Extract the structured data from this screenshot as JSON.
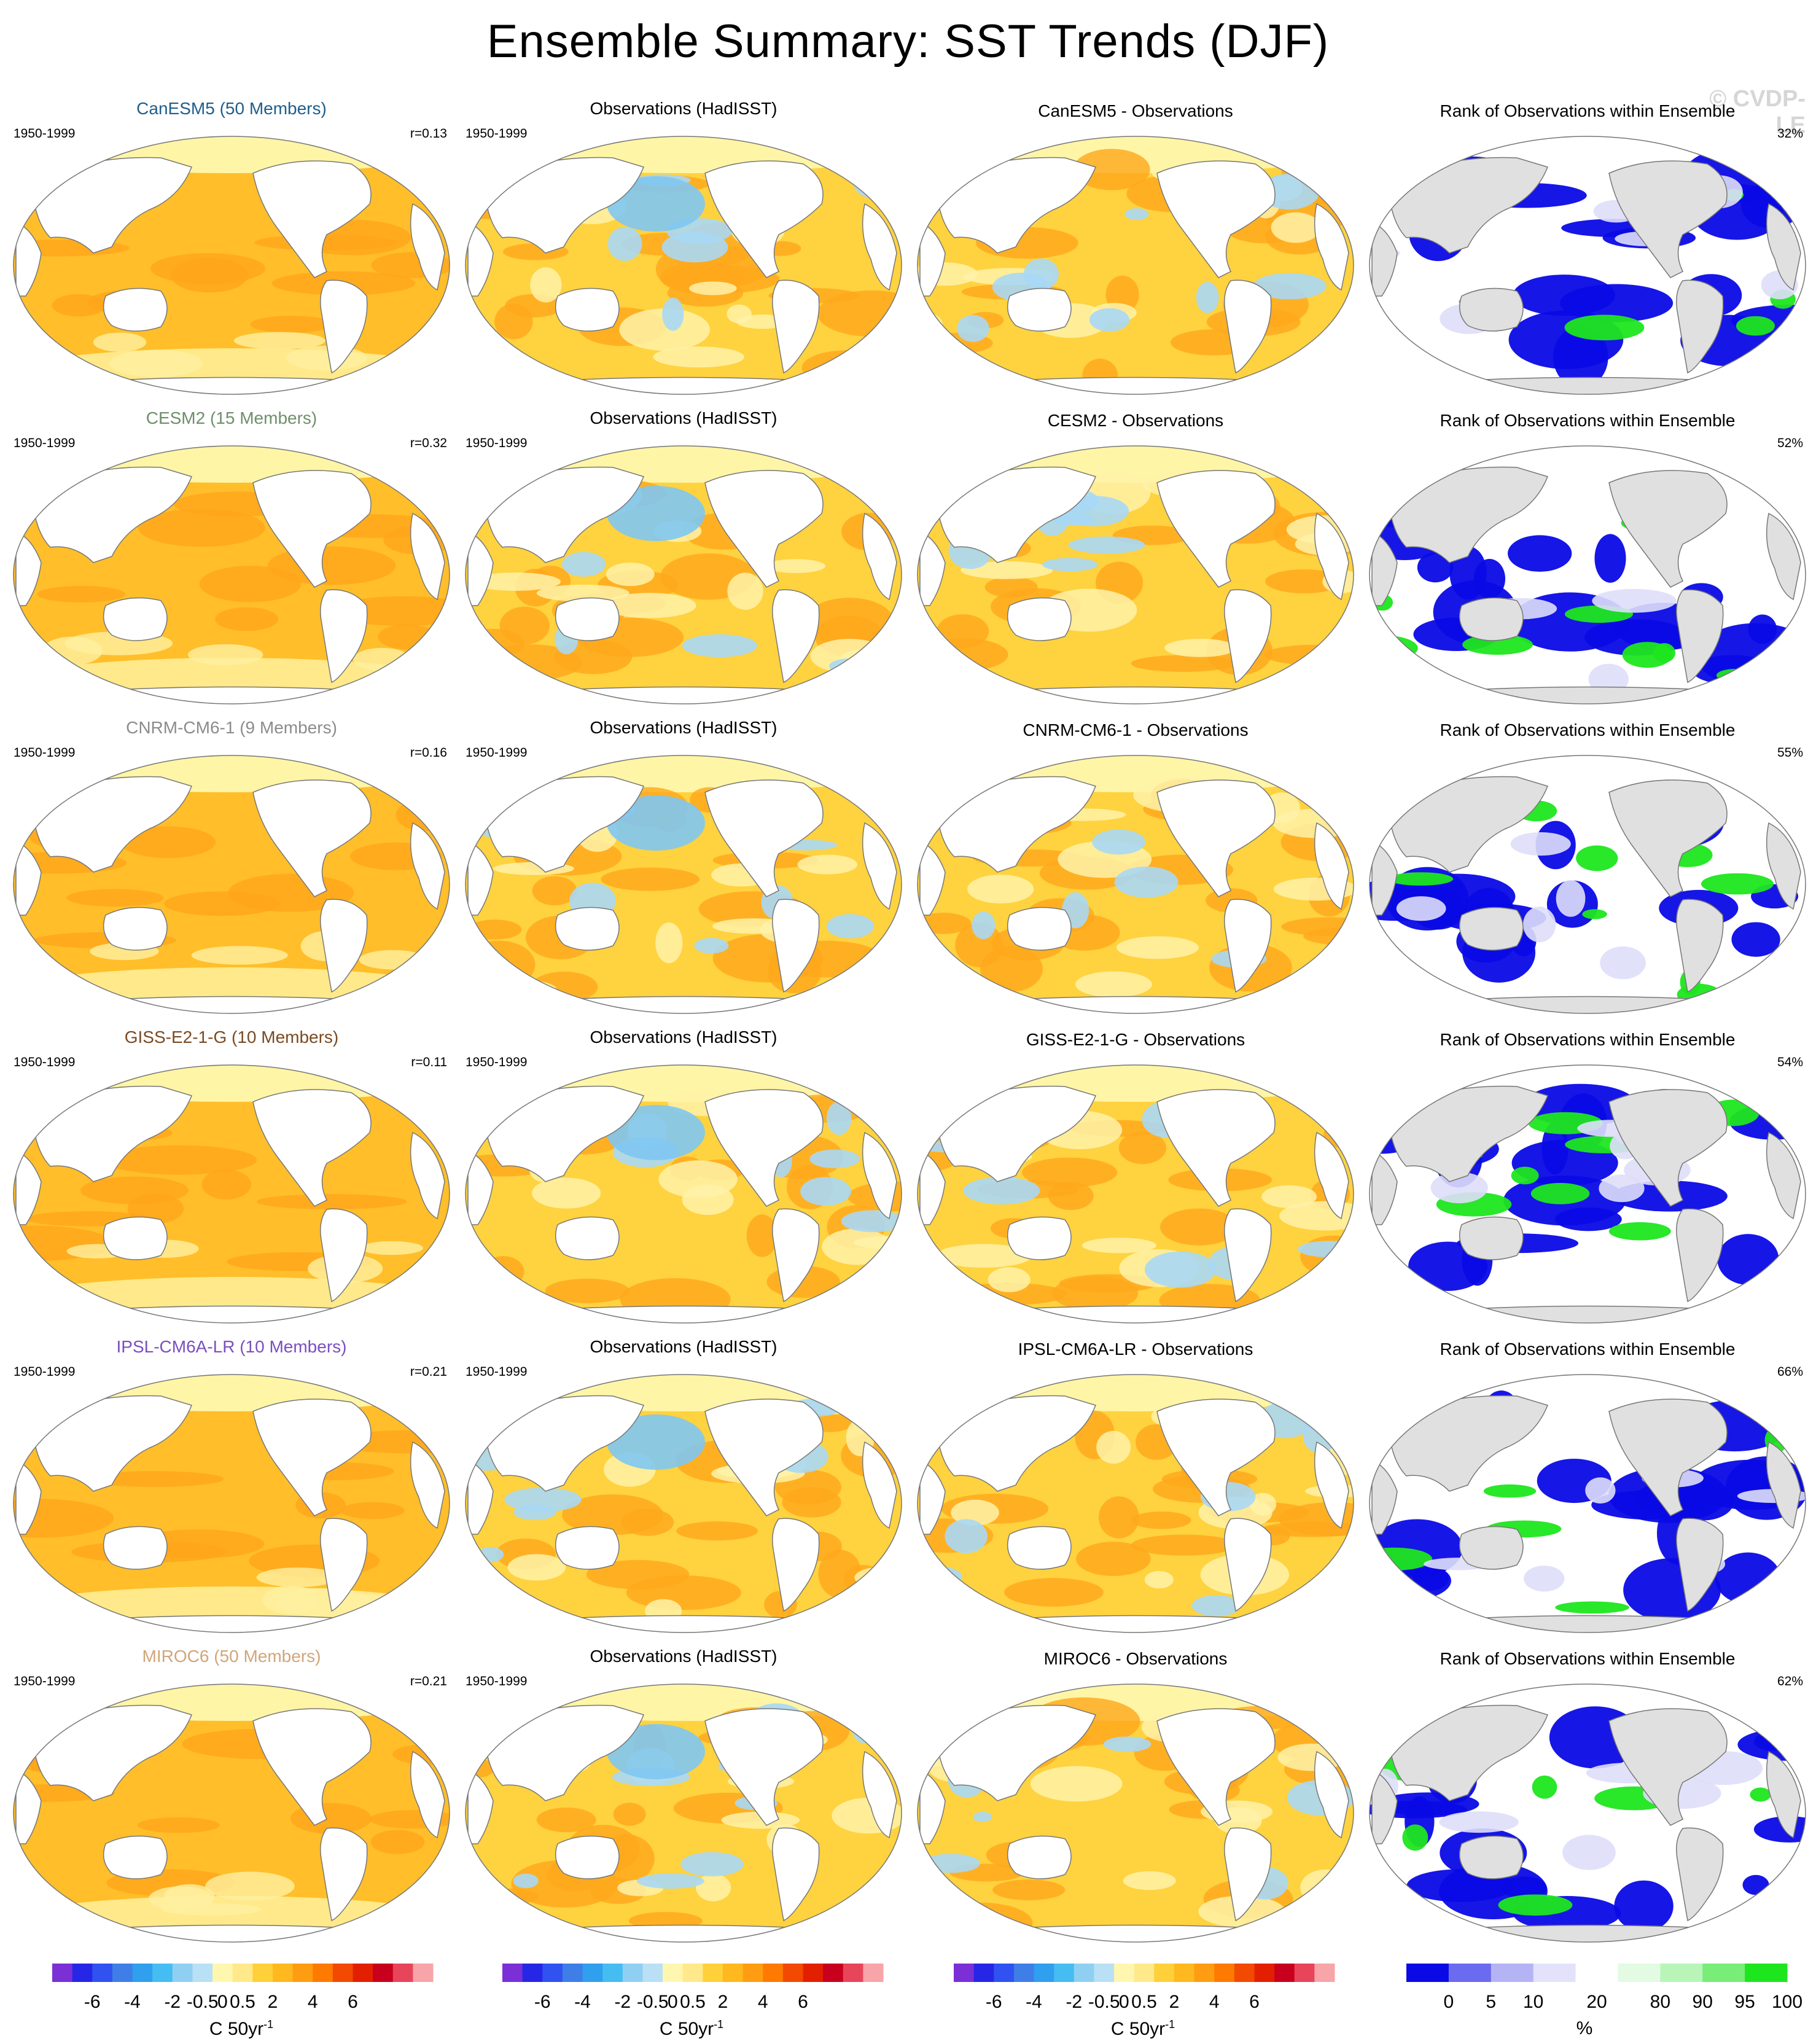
{
  "title": "Ensemble Summary: SST Trends (DJF)",
  "watermark": "© CVDP-LE",
  "period": "1950-1999",
  "rows": [
    {
      "model_title": "CanESM5 (50 Members)",
      "model_color": "#1f5e8c",
      "r": "r=0.13",
      "diff_title": "CanESM5 - Observations",
      "rank_title": "Rank of Observations within Ensemble",
      "rank_pct": "32%"
    },
    {
      "model_title": "CESM2 (15 Members)",
      "model_color": "#6f8f6b",
      "r": "r=0.32",
      "diff_title": "CESM2 - Observations",
      "rank_title": "Rank of Observations within Ensemble",
      "rank_pct": "52%"
    },
    {
      "model_title": "CNRM-CM6-1 (9 Members)",
      "model_color": "#8c8c8c",
      "r": "r=0.16",
      "diff_title": "CNRM-CM6-1 - Observations",
      "rank_title": "Rank of Observations within Ensemble",
      "rank_pct": "55%"
    },
    {
      "model_title": "GISS-E2-1-G (10 Members)",
      "model_color": "#7a4a22",
      "r": "r=0.11",
      "diff_title": "GISS-E2-1-G - Observations",
      "rank_title": "Rank of Observations within Ensemble",
      "rank_pct": "54%"
    },
    {
      "model_title": "IPSL-CM6A-LR (10 Members)",
      "model_color": "#7b4fc0",
      "r": "r=0.21",
      "diff_title": "IPSL-CM6A-LR - Observations",
      "rank_title": "Rank of Observations within Ensemble",
      "rank_pct": "66%"
    },
    {
      "model_title": "MIROC6 (50 Members)",
      "model_color": "#d2a57a",
      "r": "r=0.21",
      "diff_title": "MIROC6 - Observations",
      "rank_title": "Rank of Observations within Ensemble",
      "rank_pct": "62%"
    }
  ],
  "obs_title": "Observations (HadISST)",
  "chart_data": [
    {
      "type": "heatmap",
      "name": "trend colorbar",
      "unit_label": "C 50yr",
      "unit_exponent": "-1",
      "tick_labels": [
        "-6",
        "-4",
        "-2",
        "-0.5",
        "0",
        "0.5",
        "2",
        "4",
        "6"
      ],
      "colors": [
        "#7b2fd6",
        "#2626e6",
        "#2f52f0",
        "#3f7ee6",
        "#2f9fee",
        "#45bdf2",
        "#8fd0f2",
        "#b9e0f5",
        "#fff7b0",
        "#ffe98a",
        "#ffd03a",
        "#ffb81e",
        "#ff9d12",
        "#ff7a00",
        "#f24a00",
        "#e22000",
        "#c8001e",
        "#e8455a",
        "#f7a5a8"
      ]
    },
    {
      "type": "heatmap",
      "name": "rank colorbar",
      "unit_label": "%",
      "tick_labels": [
        "0",
        "5",
        "10",
        "20",
        "80",
        "90",
        "95",
        "100"
      ],
      "colors": [
        "#0a0ae6",
        "#6b6bf0",
        "#b4b4f5",
        "#e2e2fb",
        "#ffffff",
        "#e2fbe2",
        "#b9f5b9",
        "#78ed78",
        "#1ee61e"
      ]
    }
  ]
}
